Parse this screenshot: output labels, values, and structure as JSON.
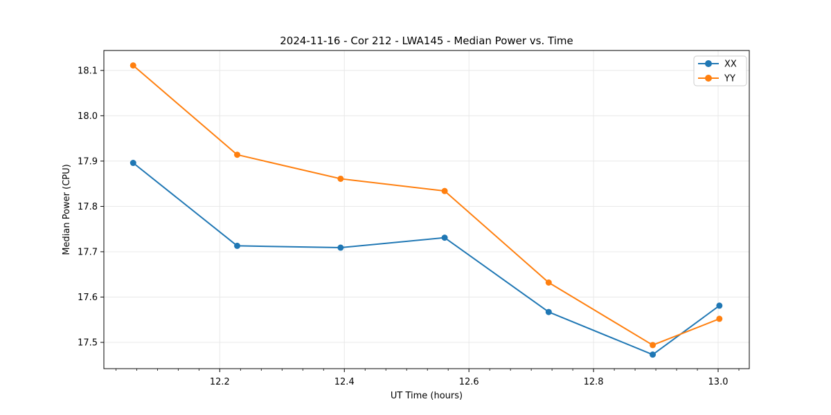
{
  "chart_data": {
    "type": "line",
    "title": "2024-11-16 - Cor 212 - LWA145 - Median Power vs. Time",
    "xlabel": "UT Time (hours)",
    "ylabel": "Median Power (CPU)",
    "x": [
      12.061,
      12.228,
      12.394,
      12.561,
      12.728,
      12.895,
      13.002
    ],
    "series": [
      {
        "name": "XX",
        "color": "#1f77b4",
        "values": [
          17.896,
          17.713,
          17.709,
          17.731,
          17.567,
          17.473,
          17.581
        ]
      },
      {
        "name": "YY",
        "color": "#ff7f0e",
        "values": [
          18.111,
          17.914,
          17.861,
          17.834,
          17.632,
          17.494,
          17.552
        ]
      }
    ],
    "xlim": [
      12.014,
      13.05
    ],
    "ylim": [
      17.442,
      18.144
    ],
    "xticks": [
      12.2,
      12.4,
      12.6,
      12.8,
      13.0
    ],
    "yticks": [
      17.5,
      17.6,
      17.7,
      17.8,
      17.9,
      18.0,
      18.1
    ],
    "x_minor_divisions": 6,
    "tick_decimals": 1,
    "grid": true,
    "legend": {
      "position": "upper right",
      "labels": [
        "XX",
        "YY"
      ]
    },
    "style": {
      "grid_color": "#e8e8e8",
      "spine_color": "#000000",
      "legend_border": "#cccccc",
      "background": "#ffffff",
      "line_width": 2,
      "marker_radius": 4.5
    }
  }
}
